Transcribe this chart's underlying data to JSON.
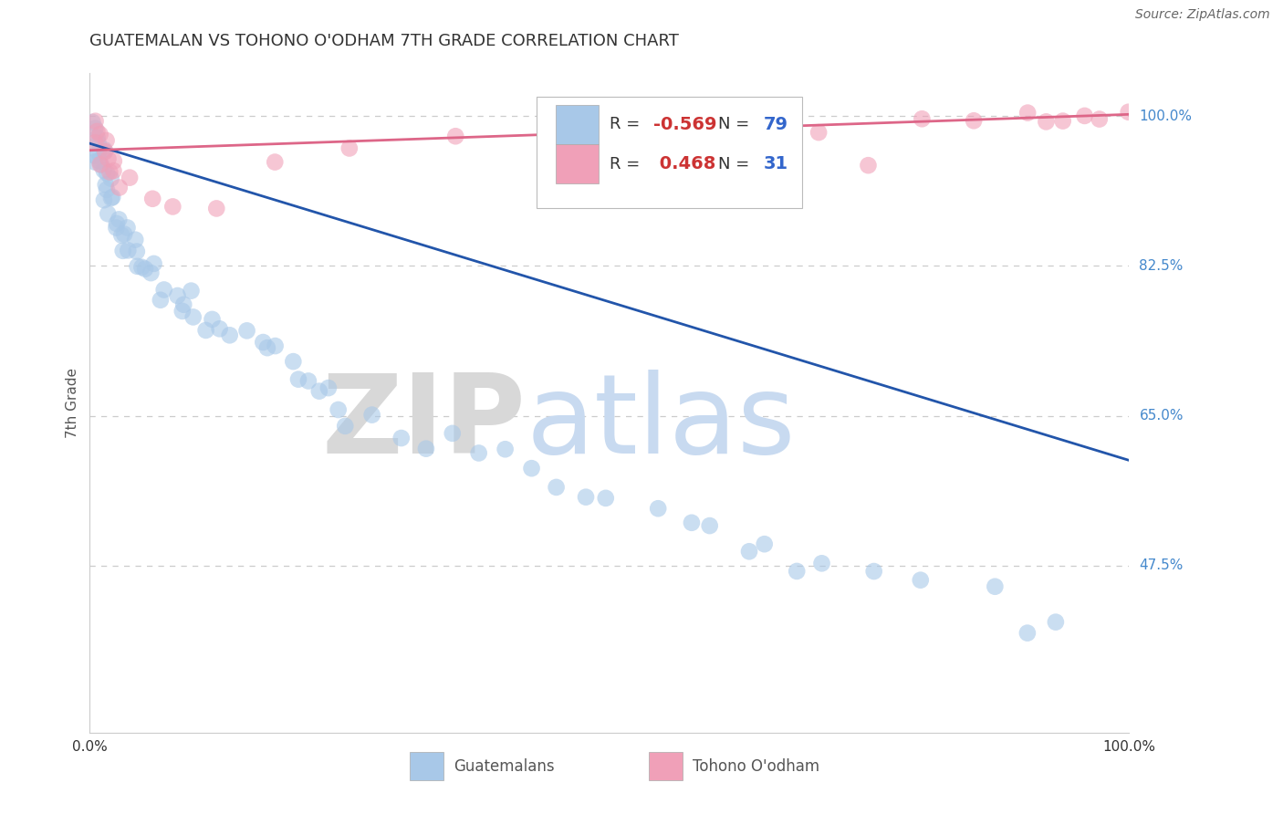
{
  "title": "GUATEMALAN VS TOHONO O'ODHAM 7TH GRADE CORRELATION CHART",
  "source": "Source: ZipAtlas.com",
  "ylabel": "7th Grade",
  "ytick_labels": [
    "100.0%",
    "82.5%",
    "65.0%",
    "47.5%"
  ],
  "ytick_values": [
    1.0,
    0.825,
    0.65,
    0.475
  ],
  "blue_color": "#a8c8e8",
  "pink_color": "#f0a0b8",
  "blue_line_color": "#2255aa",
  "pink_line_color": "#dd6688",
  "background_color": "#ffffff",
  "blue_r": -0.569,
  "blue_n": 79,
  "pink_r": 0.468,
  "pink_n": 31,
  "blue_scatter_x": [
    0.003,
    0.004,
    0.005,
    0.006,
    0.007,
    0.008,
    0.009,
    0.01,
    0.011,
    0.012,
    0.013,
    0.014,
    0.015,
    0.016,
    0.017,
    0.018,
    0.019,
    0.02,
    0.021,
    0.022,
    0.023,
    0.025,
    0.027,
    0.03,
    0.032,
    0.035,
    0.038,
    0.04,
    0.042,
    0.045,
    0.048,
    0.05,
    0.055,
    0.06,
    0.065,
    0.07,
    0.075,
    0.08,
    0.085,
    0.09,
    0.095,
    0.1,
    0.11,
    0.12,
    0.13,
    0.14,
    0.15,
    0.16,
    0.17,
    0.18,
    0.19,
    0.2,
    0.21,
    0.22,
    0.23,
    0.24,
    0.25,
    0.27,
    0.3,
    0.32,
    0.35,
    0.38,
    0.4,
    0.42,
    0.45,
    0.48,
    0.5,
    0.55,
    0.58,
    0.6,
    0.63,
    0.65,
    0.68,
    0.7,
    0.75,
    0.8,
    0.87,
    0.9,
    0.93
  ],
  "blue_scatter_y": [
    0.99,
    0.985,
    0.975,
    0.97,
    0.965,
    0.96,
    0.955,
    0.95,
    0.945,
    0.94,
    0.935,
    0.93,
    0.925,
    0.92,
    0.915,
    0.91,
    0.905,
    0.9,
    0.895,
    0.89,
    0.885,
    0.88,
    0.87,
    0.865,
    0.86,
    0.855,
    0.85,
    0.845,
    0.84,
    0.835,
    0.83,
    0.825,
    0.82,
    0.815,
    0.81,
    0.8,
    0.795,
    0.79,
    0.785,
    0.78,
    0.775,
    0.77,
    0.76,
    0.755,
    0.75,
    0.745,
    0.74,
    0.73,
    0.725,
    0.72,
    0.71,
    0.7,
    0.695,
    0.685,
    0.68,
    0.67,
    0.66,
    0.65,
    0.64,
    0.635,
    0.625,
    0.615,
    0.605,
    0.595,
    0.58,
    0.57,
    0.56,
    0.545,
    0.535,
    0.525,
    0.51,
    0.5,
    0.49,
    0.48,
    0.46,
    0.445,
    0.43,
    0.415,
    0.4
  ],
  "pink_scatter_x": [
    0.003,
    0.005,
    0.007,
    0.009,
    0.011,
    0.013,
    0.015,
    0.017,
    0.019,
    0.022,
    0.025,
    0.03,
    0.04,
    0.06,
    0.08,
    0.12,
    0.18,
    0.25,
    0.35,
    0.5,
    0.6,
    0.7,
    0.75,
    0.8,
    0.85,
    0.9,
    0.92,
    0.94,
    0.96,
    0.97,
    1.0
  ],
  "pink_scatter_y": [
    0.985,
    0.98,
    0.975,
    0.97,
    0.965,
    0.96,
    0.955,
    0.95,
    0.945,
    0.94,
    0.935,
    0.93,
    0.92,
    0.915,
    0.905,
    0.895,
    0.94,
    0.96,
    0.97,
    0.98,
    0.985,
    0.99,
    0.945,
    0.992,
    0.997,
    1.0,
    0.998,
    0.999,
    1.0,
    0.998,
    1.0
  ]
}
